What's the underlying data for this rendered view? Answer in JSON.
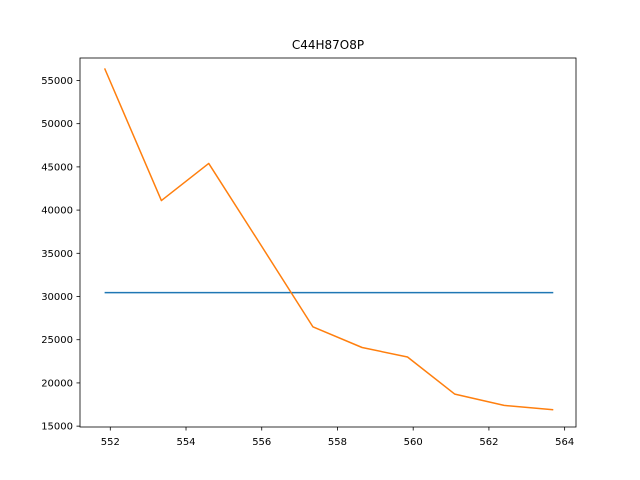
{
  "chart_data": {
    "type": "line",
    "title": "C44H87O8P",
    "xlabel": "",
    "ylabel": "",
    "xlim": [
      551.2,
      564.3
    ],
    "ylim": [
      14900,
      57600
    ],
    "xticks": [
      552,
      554,
      556,
      558,
      560,
      562,
      564
    ],
    "yticks": [
      15000,
      20000,
      25000,
      30000,
      35000,
      40000,
      45000,
      50000,
      55000
    ],
    "grid": false,
    "series": [
      {
        "color": "#1f77b4",
        "x": [
          551.85,
          563.7
        ],
        "y": [
          30450,
          30450
        ]
      },
      {
        "color": "#ff7f0e",
        "x": [
          551.85,
          553.35,
          554.6,
          556.0,
          557.35,
          558.65,
          559.85,
          561.1,
          562.4,
          563.7
        ],
        "y": [
          56400,
          41100,
          45400,
          35800,
          26500,
          24100,
          23000,
          18700,
          17400,
          16900
        ]
      }
    ]
  }
}
